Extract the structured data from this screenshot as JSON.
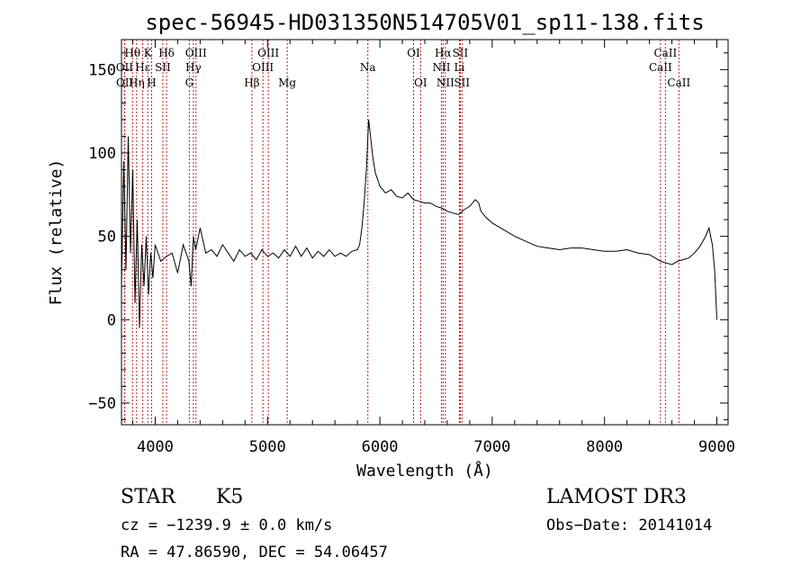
{
  "chart_data": {
    "type": "line",
    "title": "spec-56945-HD031350N514705V01_sp11-138.fits",
    "xlabel": "Wavelength (Å)",
    "ylabel": "Flux (relative)",
    "xlim": [
      3700,
      9100
    ],
    "ylim": [
      -63,
      168
    ],
    "xticks": [
      4000,
      5000,
      6000,
      7000,
      8000,
      9000
    ],
    "yticks": [
      -50,
      0,
      50,
      100,
      150
    ],
    "grid": false,
    "series": [
      {
        "name": "flux",
        "x": [
          3700,
          3720,
          3740,
          3760,
          3780,
          3800,
          3820,
          3840,
          3860,
          3880,
          3900,
          3920,
          3940,
          3960,
          3980,
          4000,
          4050,
          4100,
          4150,
          4200,
          4250,
          4300,
          4320,
          4340,
          4360,
          4400,
          4450,
          4500,
          4550,
          4600,
          4650,
          4700,
          4750,
          4800,
          4850,
          4900,
          4950,
          5000,
          5050,
          5100,
          5150,
          5200,
          5250,
          5300,
          5350,
          5400,
          5450,
          5500,
          5550,
          5600,
          5650,
          5700,
          5750,
          5800,
          5820,
          5840,
          5860,
          5880,
          5900,
          5920,
          5940,
          5960,
          5980,
          6000,
          6050,
          6100,
          6150,
          6200,
          6250,
          6300,
          6350,
          6400,
          6450,
          6500,
          6550,
          6600,
          6650,
          6700,
          6750,
          6800,
          6850,
          6880,
          6900,
          6950,
          7000,
          7100,
          7200,
          7300,
          7400,
          7500,
          7600,
          7700,
          7800,
          7900,
          8000,
          8100,
          8200,
          8300,
          8400,
          8450,
          8500,
          8550,
          8600,
          8650,
          8700,
          8750,
          8800,
          8850,
          8900,
          8930,
          8960,
          8980,
          8990,
          9000
        ],
        "values": [
          20,
          95,
          30,
          110,
          40,
          90,
          10,
          60,
          -5,
          45,
          20,
          50,
          15,
          40,
          25,
          45,
          35,
          38,
          40,
          28,
          45,
          35,
          20,
          50,
          42,
          55,
          40,
          42,
          38,
          45,
          40,
          35,
          42,
          38,
          40,
          36,
          42,
          38,
          40,
          37,
          42,
          38,
          44,
          38,
          43,
          37,
          41,
          38,
          42,
          38,
          40,
          38,
          41,
          42,
          45,
          55,
          70,
          90,
          120,
          108,
          96,
          88,
          84,
          80,
          76,
          78,
          74,
          73,
          76,
          72,
          71,
          70,
          70,
          68,
          67,
          65,
          64,
          63,
          66,
          68,
          72,
          70,
          65,
          61,
          58,
          54,
          50,
          47,
          44,
          43,
          42,
          43,
          43,
          42,
          41,
          41,
          42,
          40,
          39,
          37,
          35,
          34,
          33,
          35,
          36,
          37,
          40,
          44,
          50,
          55,
          45,
          30,
          15,
          0
        ]
      }
    ],
    "lines": [
      {
        "label": "Hθ",
        "wave": 3798,
        "row": 0
      },
      {
        "label": "OII",
        "wave": 3727,
        "row": 1
      },
      {
        "label": "OII",
        "wave": 3729,
        "row": 2
      },
      {
        "label": "Hη",
        "wave": 3835,
        "row": 2
      },
      {
        "label": "Hε",
        "wave": 3889,
        "row": 1
      },
      {
        "label": "K",
        "wave": 3934,
        "row": 0
      },
      {
        "label": "H",
        "wave": 3968,
        "row": 2
      },
      {
        "label": "SII",
        "wave": 4068,
        "row": 1
      },
      {
        "label": "Hδ",
        "wave": 4101,
        "row": 0
      },
      {
        "label": "G",
        "wave": 4304,
        "row": 2
      },
      {
        "label": "Hγ",
        "wave": 4340,
        "row": 1
      },
      {
        "label": "OIII",
        "wave": 4363,
        "row": 0
      },
      {
        "label": "Hβ",
        "wave": 4861,
        "row": 2
      },
      {
        "label": "OIII",
        "wave": 4959,
        "row": 1
      },
      {
        "label": "OIII",
        "wave": 5007,
        "row": 0
      },
      {
        "label": "Mg",
        "wave": 5175,
        "row": 2
      },
      {
        "label": "Na",
        "wave": 5893,
        "row": 1
      },
      {
        "label": "OI",
        "wave": 6300,
        "row": 0
      },
      {
        "label": "OI",
        "wave": 6363,
        "row": 2
      },
      {
        "label": "NII",
        "wave": 6548,
        "row": 1
      },
      {
        "label": "Hα",
        "wave": 6563,
        "row": 0
      },
      {
        "label": "NII",
        "wave": 6583,
        "row": 2
      },
      {
        "label": "Li",
        "wave": 6708,
        "row": 1
      },
      {
        "label": "SII",
        "wave": 6716,
        "row": 0
      },
      {
        "label": "SII",
        "wave": 6731,
        "row": 2
      },
      {
        "label": "CaII",
        "wave": 8498,
        "row": 1
      },
      {
        "label": "CaII",
        "wave": 8542,
        "row": 0
      },
      {
        "label": "CaII",
        "wave": 8662,
        "row": 2
      }
    ]
  },
  "info": {
    "obj_class": "STAR",
    "obj_subclass": "K5",
    "survey": "LAMOST DR3",
    "cz": "cz = −1239.9 ± 0.0 km/s",
    "obs_date": "Obs−Date: 20141014",
    "radec": "RA =  47.86590, DEC =  54.06457"
  },
  "colors": {
    "spectrum": "#000000",
    "line_markers": "#b22222",
    "axes": "#000000"
  }
}
